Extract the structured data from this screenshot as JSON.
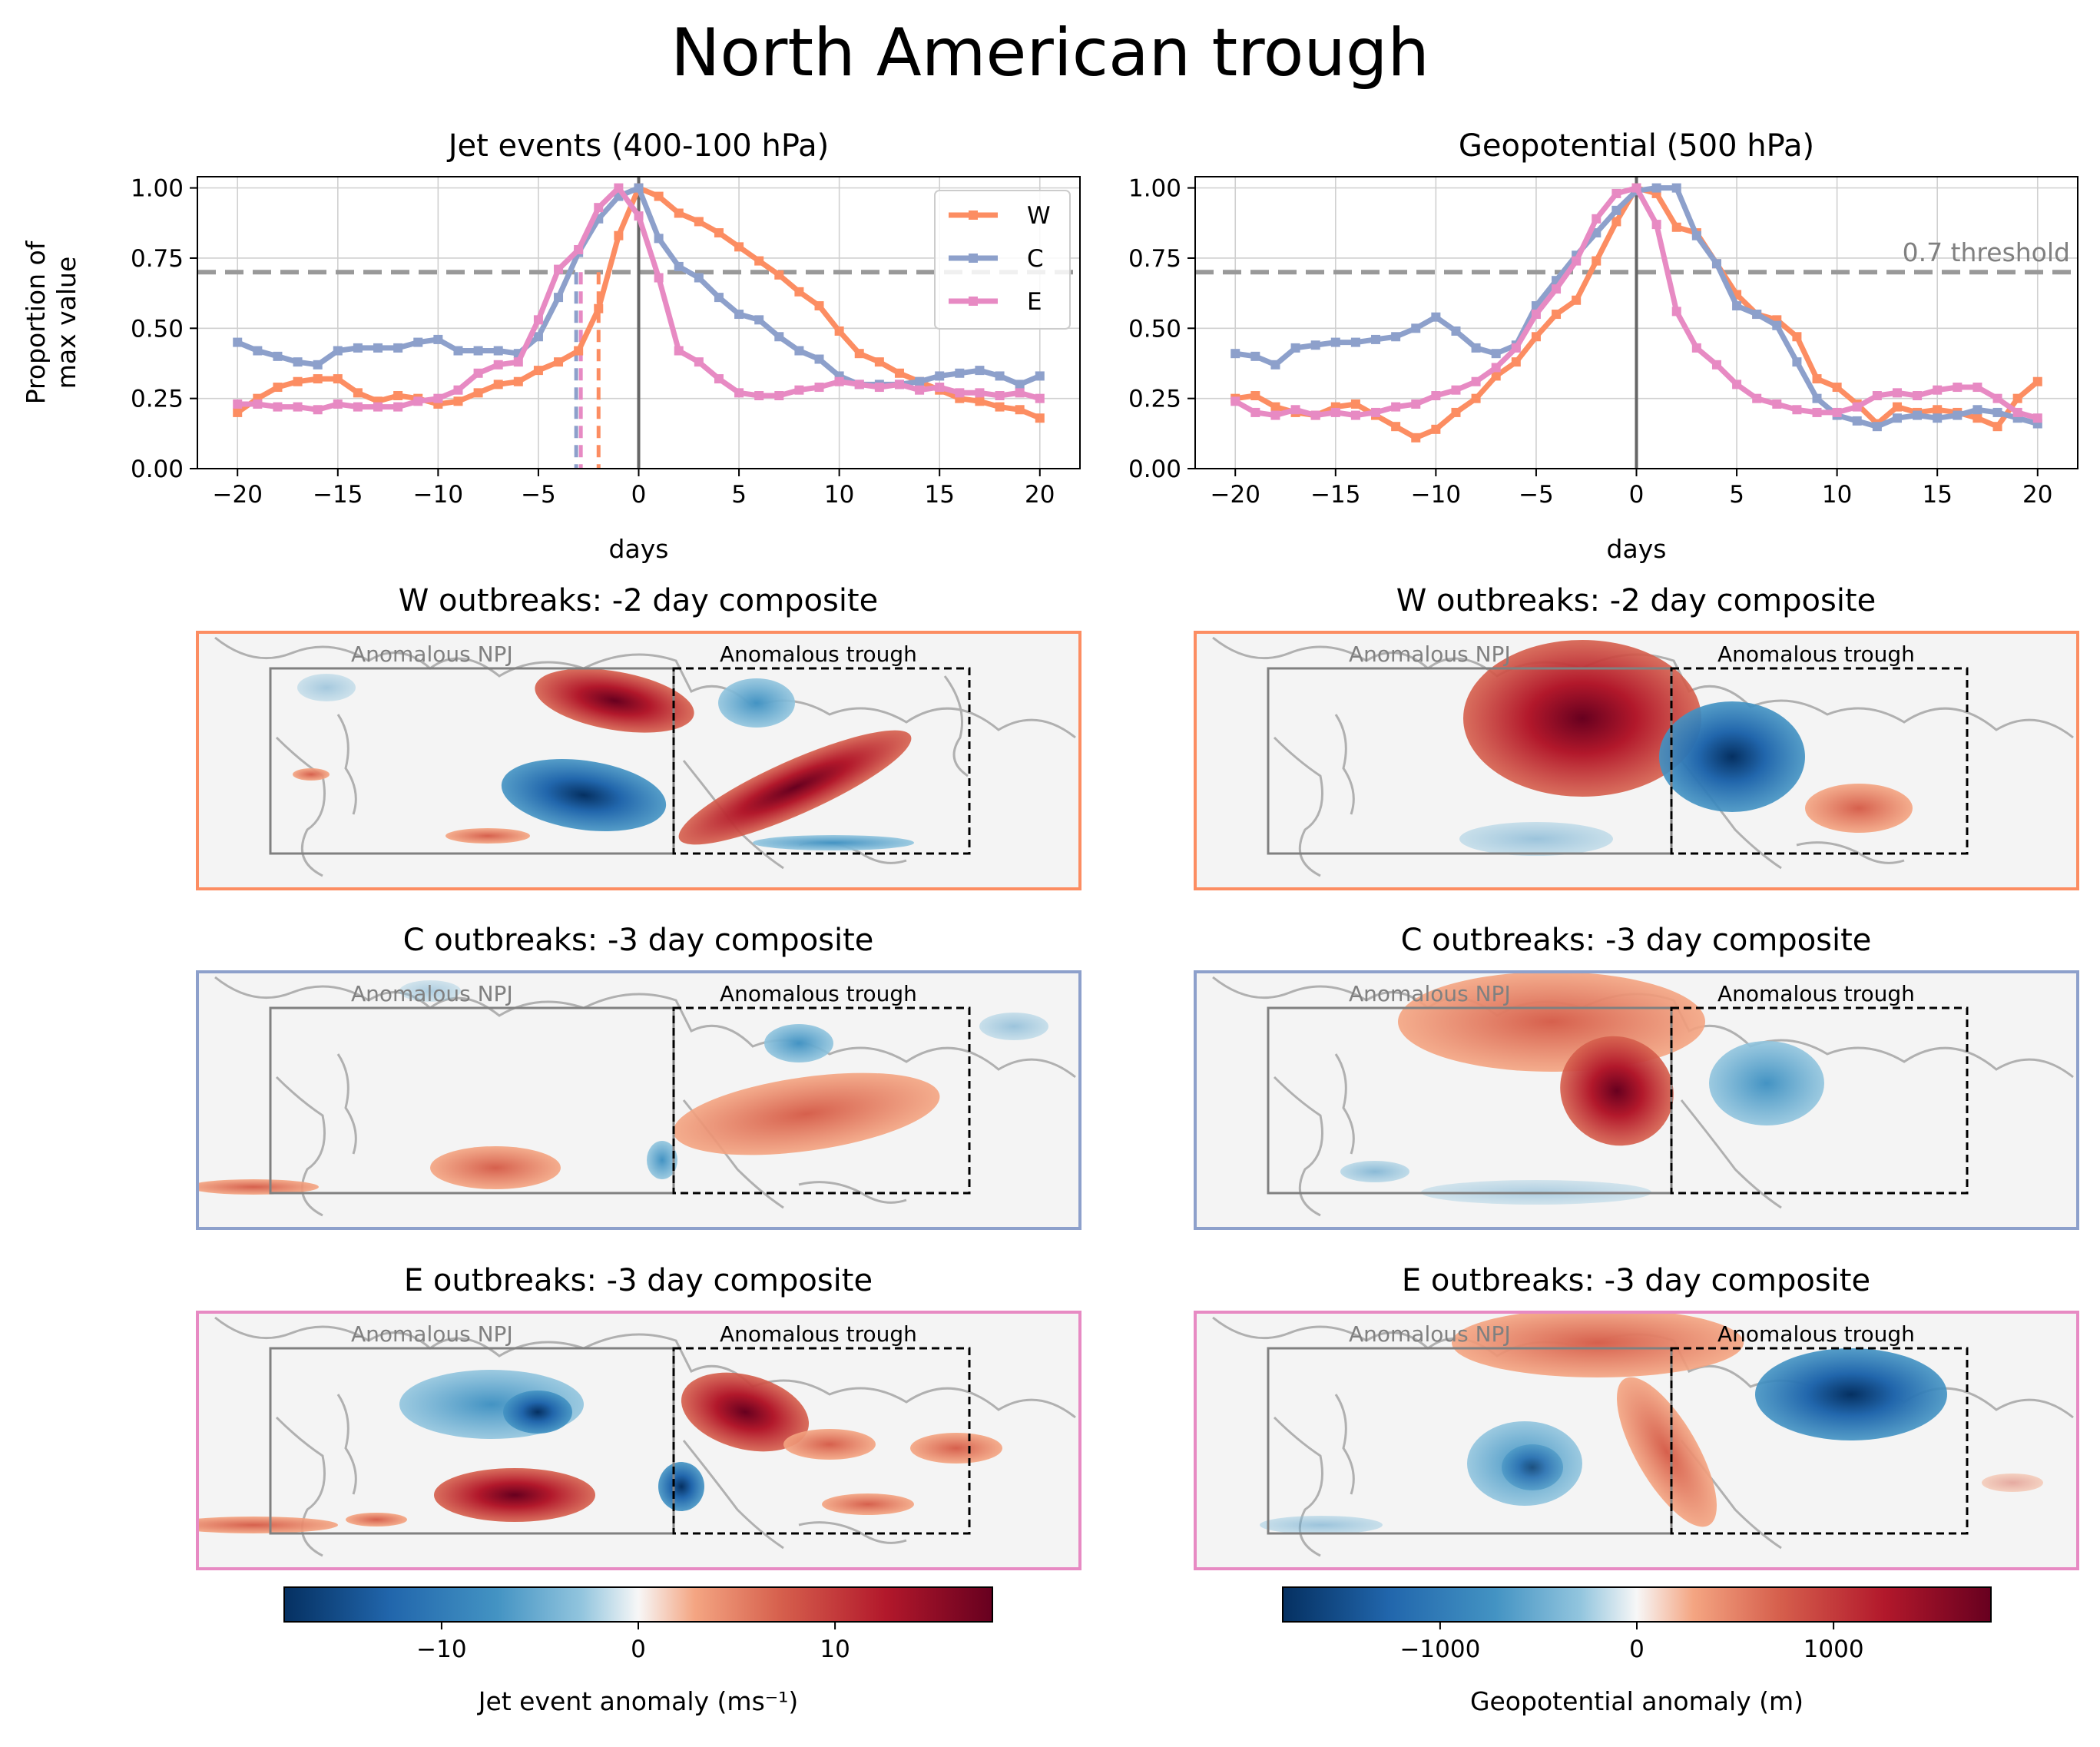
{
  "figure": {
    "title": "North American trough",
    "colors": {
      "W": "#fc8d62",
      "C": "#8da0cb",
      "E": "#e78ac3"
    }
  },
  "chart_data": [
    {
      "type": "line",
      "title": "Jet events (400-100 hPa)",
      "xlabel": "days",
      "ylabel": "Proportion of\nmax value",
      "xlim": [
        -22,
        22
      ],
      "ylim": [
        0,
        1.04
      ],
      "xticks": [
        -20,
        -15,
        -10,
        -5,
        0,
        5,
        10,
        15,
        20
      ],
      "yticks": [
        0,
        0.25,
        0.5,
        0.75,
        1.0
      ],
      "ytick_labels": [
        "0.00",
        "0.25",
        "0.50",
        "0.75",
        "1.00"
      ],
      "grid": true,
      "threshold": 0.7,
      "vline": 0,
      "onset_markers": [
        {
          "series": "C",
          "x": -3
        },
        {
          "series": "E",
          "x": -3
        },
        {
          "series": "W",
          "x": -2
        }
      ],
      "legend": {
        "placement": "top-right",
        "entries": [
          "W",
          "C",
          "E"
        ]
      },
      "x": [
        -20,
        -19,
        -18,
        -17,
        -16,
        -15,
        -14,
        -13,
        -12,
        -11,
        -10,
        -9,
        -8,
        -7,
        -6,
        -5,
        -4,
        -3,
        -2,
        -1,
        0,
        1,
        2,
        3,
        4,
        5,
        6,
        7,
        8,
        9,
        10,
        11,
        12,
        13,
        14,
        15,
        16,
        17,
        18,
        19,
        20
      ],
      "series": [
        {
          "name": "W",
          "values": [
            0.2,
            0.25,
            0.29,
            0.31,
            0.32,
            0.32,
            0.27,
            0.24,
            0.26,
            0.25,
            0.23,
            0.24,
            0.27,
            0.3,
            0.31,
            0.35,
            0.38,
            0.42,
            0.57,
            0.83,
            1.0,
            0.97,
            0.91,
            0.88,
            0.84,
            0.79,
            0.74,
            0.69,
            0.63,
            0.58,
            0.49,
            0.41,
            0.38,
            0.34,
            0.31,
            0.28,
            0.25,
            0.24,
            0.22,
            0.21,
            0.18
          ]
        },
        {
          "name": "C",
          "values": [
            0.45,
            0.42,
            0.4,
            0.38,
            0.37,
            0.42,
            0.43,
            0.43,
            0.43,
            0.45,
            0.46,
            0.42,
            0.42,
            0.42,
            0.41,
            0.47,
            0.61,
            0.77,
            0.89,
            0.97,
            1.0,
            0.82,
            0.72,
            0.68,
            0.61,
            0.55,
            0.53,
            0.47,
            0.42,
            0.39,
            0.33,
            0.3,
            0.3,
            0.3,
            0.31,
            0.33,
            0.34,
            0.35,
            0.33,
            0.3,
            0.33
          ]
        },
        {
          "name": "E",
          "values": [
            0.23,
            0.23,
            0.22,
            0.22,
            0.21,
            0.23,
            0.22,
            0.22,
            0.22,
            0.24,
            0.25,
            0.28,
            0.34,
            0.37,
            0.38,
            0.53,
            0.71,
            0.78,
            0.93,
            1.0,
            0.9,
            0.68,
            0.42,
            0.38,
            0.32,
            0.27,
            0.26,
            0.26,
            0.28,
            0.29,
            0.31,
            0.3,
            0.29,
            0.3,
            0.28,
            0.29,
            0.27,
            0.27,
            0.26,
            0.27,
            0.25
          ]
        }
      ]
    },
    {
      "type": "line",
      "title": "Geopotential (500 hPa)",
      "xlabel": "days",
      "xlim": [
        -22,
        22
      ],
      "ylim": [
        0,
        1.04
      ],
      "xticks": [
        -20,
        -15,
        -10,
        -5,
        0,
        5,
        10,
        15,
        20
      ],
      "yticks": [
        0,
        0.25,
        0.5,
        0.75,
        1.0
      ],
      "ytick_labels": [
        "0.00",
        "0.25",
        "0.50",
        "0.75",
        "1.00"
      ],
      "grid": true,
      "threshold": 0.7,
      "threshold_label": "0.7 threshold",
      "vline": 0,
      "x": [
        -20,
        -19,
        -18,
        -17,
        -16,
        -15,
        -14,
        -13,
        -12,
        -11,
        -10,
        -9,
        -8,
        -7,
        -6,
        -5,
        -4,
        -3,
        -2,
        -1,
        0,
        1,
        2,
        3,
        4,
        5,
        6,
        7,
        8,
        9,
        10,
        11,
        12,
        13,
        14,
        15,
        16,
        17,
        18,
        19,
        20
      ],
      "series": [
        {
          "name": "W",
          "values": [
            0.25,
            0.26,
            0.22,
            0.2,
            0.19,
            0.22,
            0.23,
            0.19,
            0.15,
            0.11,
            0.14,
            0.2,
            0.25,
            0.33,
            0.38,
            0.47,
            0.55,
            0.6,
            0.74,
            0.88,
            1.0,
            0.98,
            0.86,
            0.84,
            0.73,
            0.62,
            0.55,
            0.53,
            0.47,
            0.32,
            0.29,
            0.23,
            0.16,
            0.22,
            0.2,
            0.21,
            0.2,
            0.18,
            0.15,
            0.25,
            0.31
          ]
        },
        {
          "name": "C",
          "values": [
            0.41,
            0.4,
            0.37,
            0.43,
            0.44,
            0.45,
            0.45,
            0.46,
            0.47,
            0.5,
            0.54,
            0.49,
            0.43,
            0.41,
            0.44,
            0.58,
            0.67,
            0.76,
            0.84,
            0.92,
            0.99,
            1.0,
            1.0,
            0.83,
            0.73,
            0.58,
            0.55,
            0.51,
            0.38,
            0.25,
            0.19,
            0.17,
            0.15,
            0.18,
            0.19,
            0.18,
            0.19,
            0.21,
            0.2,
            0.18,
            0.16
          ]
        },
        {
          "name": "E",
          "values": [
            0.24,
            0.2,
            0.19,
            0.21,
            0.19,
            0.2,
            0.19,
            0.2,
            0.22,
            0.23,
            0.26,
            0.28,
            0.31,
            0.36,
            0.43,
            0.55,
            0.64,
            0.74,
            0.89,
            0.98,
            1.0,
            0.87,
            0.56,
            0.43,
            0.37,
            0.3,
            0.25,
            0.23,
            0.21,
            0.2,
            0.2,
            0.22,
            0.26,
            0.27,
            0.26,
            0.28,
            0.29,
            0.29,
            0.25,
            0.2,
            0.18
          ]
        }
      ]
    }
  ],
  "maps": {
    "box_labels": {
      "npj": "Anomalous NPJ",
      "trough": "Anomalous trough"
    },
    "left_titles": [
      "W outbreaks: -2 day composite",
      "C outbreaks: -3 day composite",
      "E outbreaks: -3 day composite"
    ],
    "right_titles": [
      "W outbreaks: -2 day composite",
      "C outbreaks: -3 day composite",
      "E outbreaks: -3 day composite"
    ],
    "frame_series": [
      "W",
      "C",
      "E"
    ]
  },
  "colorbars": [
    {
      "label": "Jet event anomaly (ms⁻¹)",
      "range": [
        -18,
        18
      ],
      "ticks": [
        -10,
        0,
        10
      ],
      "tick_labels": [
        "−10",
        "0",
        "10"
      ]
    },
    {
      "label": "Geopotential anomaly (m)",
      "range": [
        -1800,
        1800
      ],
      "ticks": [
        -1000,
        0,
        1000
      ],
      "tick_labels": [
        "−1000",
        "0",
        "1000"
      ]
    }
  ]
}
